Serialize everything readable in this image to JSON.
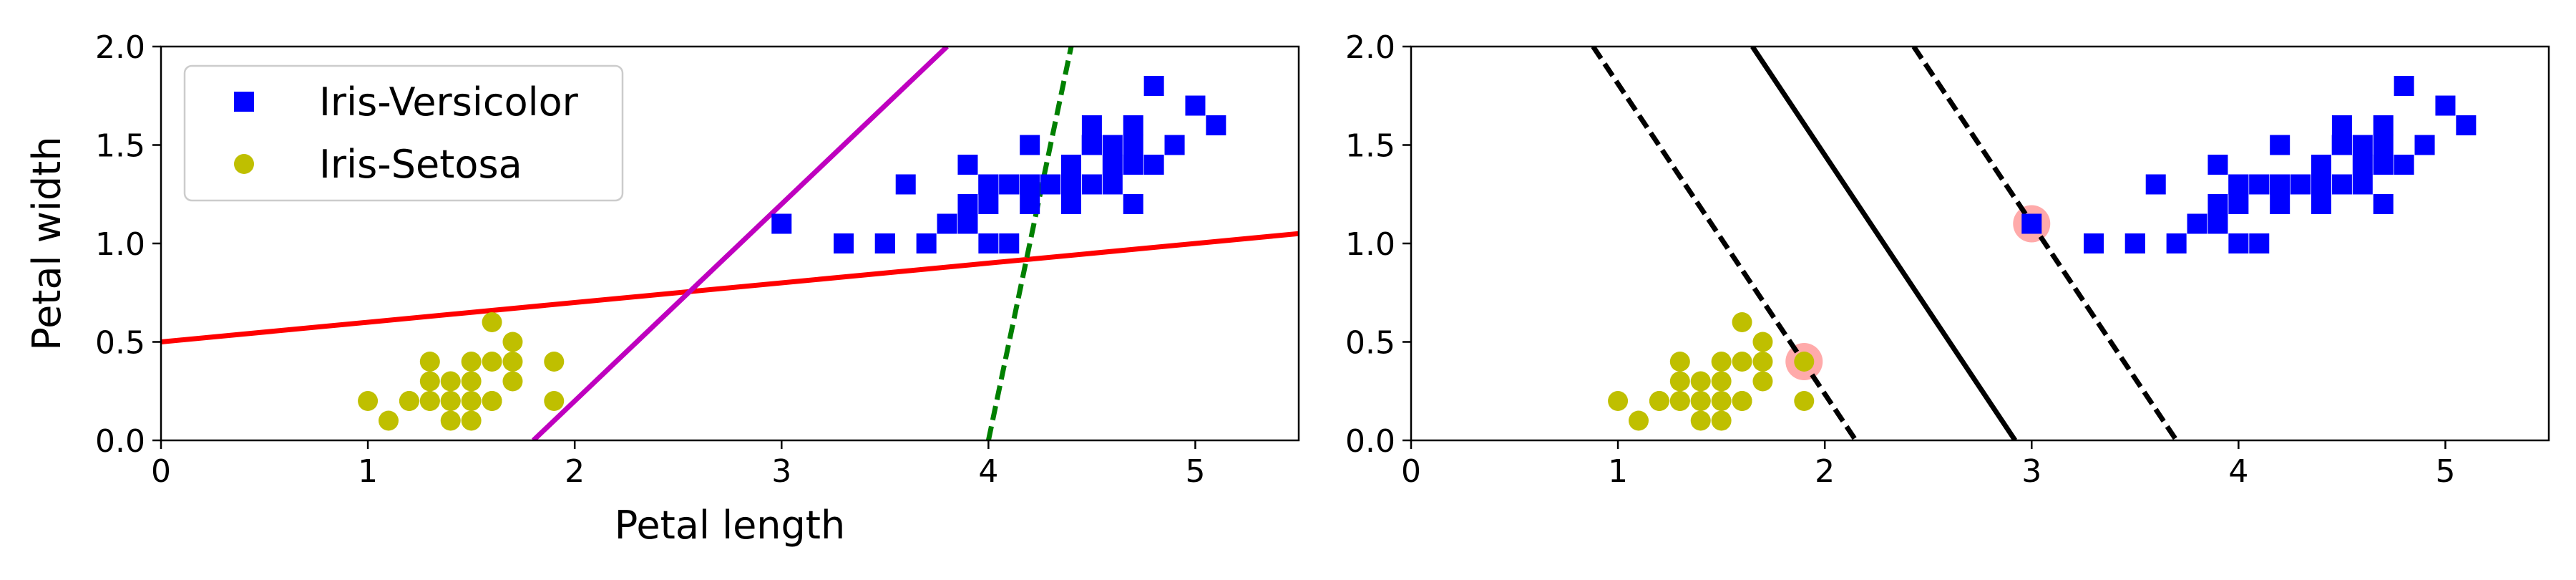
{
  "figure": {
    "colors": {
      "versicolor": "#0000ff",
      "setosa": "#bfbf00",
      "highlight": "#ffaaaa",
      "red_line": "#ff0000",
      "magenta_line": "#bf00bf",
      "green_line": "#008000",
      "black_line": "#000000"
    }
  },
  "chart_data": [
    {
      "type": "scatter",
      "title": "",
      "xlabel": "Petal length",
      "ylabel": "Petal width",
      "xlim": [
        0,
        5.5
      ],
      "ylim": [
        0,
        2.0
      ],
      "xticks": [
        "0",
        "1",
        "2",
        "3",
        "4",
        "5"
      ],
      "yticks": [
        "0.0",
        "0.5",
        "1.0",
        "1.5",
        "2.0"
      ],
      "grid": false,
      "legend": {
        "placement": "upper-left",
        "entries": [
          "Iris-Versicolor",
          "Iris-Setosa"
        ]
      },
      "series": [
        {
          "name": "Iris-Versicolor",
          "marker": "square",
          "color": "#0000ff",
          "points": [
            [
              4.7,
              1.4
            ],
            [
              4.5,
              1.5
            ],
            [
              4.9,
              1.5
            ],
            [
              4.0,
              1.3
            ],
            [
              4.6,
              1.5
            ],
            [
              4.5,
              1.3
            ],
            [
              4.7,
              1.6
            ],
            [
              3.3,
              1.0
            ],
            [
              4.6,
              1.3
            ],
            [
              3.9,
              1.4
            ],
            [
              3.5,
              1.0
            ],
            [
              4.2,
              1.5
            ],
            [
              4.0,
              1.0
            ],
            [
              4.7,
              1.4
            ],
            [
              3.6,
              1.3
            ],
            [
              4.4,
              1.4
            ],
            [
              4.5,
              1.5
            ],
            [
              4.1,
              1.0
            ],
            [
              4.5,
              1.5
            ],
            [
              3.9,
              1.1
            ],
            [
              4.8,
              1.8
            ],
            [
              4.0,
              1.3
            ],
            [
              4.9,
              1.5
            ],
            [
              4.7,
              1.2
            ],
            [
              4.3,
              1.3
            ],
            [
              4.4,
              1.4
            ],
            [
              4.8,
              1.4
            ],
            [
              5.0,
              1.7
            ],
            [
              4.5,
              1.5
            ],
            [
              3.5,
              1.0
            ],
            [
              3.8,
              1.1
            ],
            [
              3.7,
              1.0
            ],
            [
              3.9,
              1.2
            ],
            [
              5.1,
              1.6
            ],
            [
              4.5,
              1.5
            ],
            [
              4.5,
              1.6
            ],
            [
              4.7,
              1.5
            ],
            [
              4.4,
              1.3
            ],
            [
              4.1,
              1.3
            ],
            [
              4.0,
              1.3
            ],
            [
              4.4,
              1.2
            ],
            [
              4.6,
              1.4
            ],
            [
              4.0,
              1.2
            ],
            [
              3.3,
              1.0
            ],
            [
              4.2,
              1.3
            ],
            [
              4.2,
              1.2
            ],
            [
              4.2,
              1.3
            ],
            [
              4.3,
              1.3
            ],
            [
              3.0,
              1.1
            ],
            [
              4.1,
              1.3
            ]
          ]
        },
        {
          "name": "Iris-Setosa",
          "marker": "circle",
          "color": "#bfbf00",
          "points": [
            [
              1.4,
              0.2
            ],
            [
              1.3,
              0.2
            ],
            [
              1.5,
              0.2
            ],
            [
              1.7,
              0.4
            ],
            [
              1.4,
              0.3
            ],
            [
              1.5,
              0.1
            ],
            [
              1.6,
              0.2
            ],
            [
              1.1,
              0.1
            ],
            [
              1.2,
              0.2
            ],
            [
              1.3,
              0.4
            ],
            [
              1.7,
              0.3
            ],
            [
              1.0,
              0.2
            ],
            [
              1.7,
              0.5
            ],
            [
              1.9,
              0.2
            ],
            [
              1.6,
              0.4
            ],
            [
              1.5,
              0.4
            ],
            [
              1.4,
              0.1
            ],
            [
              1.6,
              0.6
            ],
            [
              1.9,
              0.4
            ],
            [
              1.3,
              0.3
            ],
            [
              1.5,
              0.3
            ],
            [
              1.3,
              0.2
            ],
            [
              1.6,
              0.2
            ],
            [
              1.2,
              0.2
            ],
            [
              1.4,
              0.2
            ]
          ]
        }
      ],
      "lines": [
        {
          "style": "solid",
          "color": "#ff0000",
          "points": [
            [
              0,
              0.5
            ],
            [
              5.5,
              1.05
            ]
          ]
        },
        {
          "style": "solid",
          "color": "#bf00bf",
          "points": [
            [
              1.8,
              0.0
            ],
            [
              3.8,
              2.0
            ]
          ]
        },
        {
          "style": "dashed",
          "color": "#008000",
          "points": [
            [
              4.0,
              0.0
            ],
            [
              4.4,
              2.0
            ]
          ]
        }
      ]
    },
    {
      "type": "scatter",
      "title": "",
      "xlabel": "",
      "ylabel": "",
      "xlim": [
        0,
        5.5
      ],
      "ylim": [
        0,
        2.0
      ],
      "xticks": [
        "0",
        "1",
        "2",
        "3",
        "4",
        "5"
      ],
      "yticks": [
        "0.0",
        "0.5",
        "1.0",
        "1.5",
        "2.0"
      ],
      "grid": false,
      "support_vectors": [
        [
          1.9,
          0.4
        ],
        [
          3.0,
          1.1
        ]
      ],
      "series": [
        {
          "name": "Iris-Versicolor",
          "marker": "square",
          "color": "#0000ff",
          "points": [
            [
              4.7,
              1.4
            ],
            [
              4.5,
              1.5
            ],
            [
              4.9,
              1.5
            ],
            [
              4.0,
              1.3
            ],
            [
              4.6,
              1.5
            ],
            [
              4.5,
              1.3
            ],
            [
              4.7,
              1.6
            ],
            [
              3.3,
              1.0
            ],
            [
              4.6,
              1.3
            ],
            [
              3.9,
              1.4
            ],
            [
              3.5,
              1.0
            ],
            [
              4.2,
              1.5
            ],
            [
              4.0,
              1.0
            ],
            [
              4.7,
              1.4
            ],
            [
              3.6,
              1.3
            ],
            [
              4.4,
              1.4
            ],
            [
              4.5,
              1.5
            ],
            [
              4.1,
              1.0
            ],
            [
              4.5,
              1.5
            ],
            [
              3.9,
              1.1
            ],
            [
              4.8,
              1.8
            ],
            [
              4.0,
              1.3
            ],
            [
              4.9,
              1.5
            ],
            [
              4.7,
              1.2
            ],
            [
              4.3,
              1.3
            ],
            [
              4.4,
              1.4
            ],
            [
              4.8,
              1.4
            ],
            [
              5.0,
              1.7
            ],
            [
              4.5,
              1.5
            ],
            [
              3.5,
              1.0
            ],
            [
              3.8,
              1.1
            ],
            [
              3.7,
              1.0
            ],
            [
              3.9,
              1.2
            ],
            [
              5.1,
              1.6
            ],
            [
              4.5,
              1.5
            ],
            [
              4.5,
              1.6
            ],
            [
              4.7,
              1.5
            ],
            [
              4.4,
              1.3
            ],
            [
              4.1,
              1.3
            ],
            [
              4.0,
              1.3
            ],
            [
              4.4,
              1.2
            ],
            [
              4.6,
              1.4
            ],
            [
              4.0,
              1.2
            ],
            [
              3.3,
              1.0
            ],
            [
              4.2,
              1.3
            ],
            [
              4.2,
              1.2
            ],
            [
              4.2,
              1.3
            ],
            [
              4.3,
              1.3
            ],
            [
              3.0,
              1.1
            ],
            [
              4.1,
              1.3
            ]
          ]
        },
        {
          "name": "Iris-Setosa",
          "marker": "circle",
          "color": "#bfbf00",
          "points": [
            [
              1.4,
              0.2
            ],
            [
              1.3,
              0.2
            ],
            [
              1.5,
              0.2
            ],
            [
              1.7,
              0.4
            ],
            [
              1.4,
              0.3
            ],
            [
              1.5,
              0.1
            ],
            [
              1.6,
              0.2
            ],
            [
              1.1,
              0.1
            ],
            [
              1.2,
              0.2
            ],
            [
              1.3,
              0.4
            ],
            [
              1.7,
              0.3
            ],
            [
              1.0,
              0.2
            ],
            [
              1.7,
              0.5
            ],
            [
              1.9,
              0.2
            ],
            [
              1.6,
              0.4
            ],
            [
              1.5,
              0.4
            ],
            [
              1.4,
              0.1
            ],
            [
              1.6,
              0.6
            ],
            [
              1.9,
              0.4
            ],
            [
              1.3,
              0.3
            ],
            [
              1.5,
              0.3
            ],
            [
              1.3,
              0.2
            ],
            [
              1.6,
              0.2
            ],
            [
              1.2,
              0.2
            ],
            [
              1.4,
              0.2
            ]
          ]
        }
      ],
      "lines": [
        {
          "style": "solid",
          "color": "#000000",
          "points": [
            [
              1.65,
              2.0
            ],
            [
              2.92,
              0.0
            ]
          ]
        },
        {
          "style": "dashed",
          "color": "#000000",
          "points": [
            [
              0.88,
              2.0
            ],
            [
              2.15,
              0.0
            ]
          ]
        },
        {
          "style": "dashed",
          "color": "#000000",
          "points": [
            [
              2.43,
              2.0
            ],
            [
              3.7,
              0.0
            ]
          ]
        }
      ]
    }
  ]
}
